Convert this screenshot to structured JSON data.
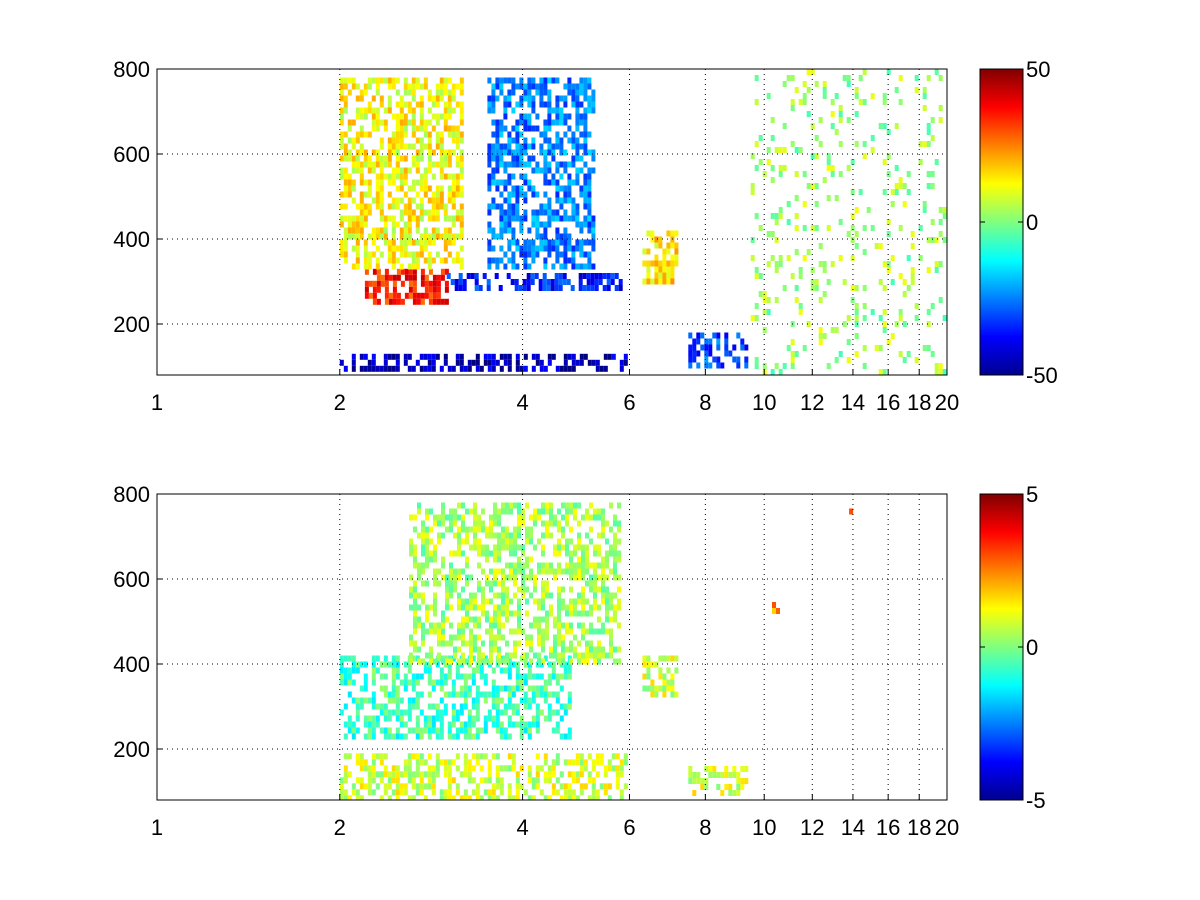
{
  "chart_data": [
    {
      "type": "heatmap",
      "title": "",
      "xlabel": "",
      "ylabel": "",
      "x_ticks": [
        1,
        2,
        4,
        6,
        8,
        10,
        12,
        14,
        16,
        18,
        20
      ],
      "y_ticks": [
        200,
        400,
        600,
        800
      ],
      "xlim": [
        1,
        20
      ],
      "ylim": [
        80,
        800
      ],
      "grid": true,
      "x_scale": "log",
      "colormap": "jet",
      "colorbar": {
        "ticks": [
          -50,
          0,
          50
        ],
        "range": [
          -50,
          50
        ]
      },
      "features": [
        {
          "x": [
            2.0,
            5.9
          ],
          "y": [
            95,
            130
          ],
          "value": -45,
          "note": "strong negative band"
        },
        {
          "x": [
            2.2,
            3.0
          ],
          "y": [
            250,
            330
          ],
          "value": 35,
          "note": "positive region"
        },
        {
          "x": [
            3.0,
            5.8
          ],
          "y": [
            280,
            320
          ],
          "value": -35
        },
        {
          "x": [
            3.5,
            5.2
          ],
          "y": [
            330,
            780
          ],
          "value": -25
        },
        {
          "x": [
            2.0,
            3.2
          ],
          "y": [
            330,
            780
          ],
          "value": 12
        },
        {
          "x": [
            6.3,
            7.2
          ],
          "y": [
            300,
            420
          ],
          "value": 15
        },
        {
          "x": [
            7.5,
            9.3
          ],
          "y": [
            100,
            180
          ],
          "value": -30
        },
        {
          "x": [
            9.5,
            20
          ],
          "y": [
            80,
            800
          ],
          "value": 3,
          "note": "sparse speckle"
        }
      ]
    },
    {
      "type": "heatmap",
      "title": "",
      "xlabel": "",
      "ylabel": "",
      "x_ticks": [
        1,
        2,
        4,
        6,
        8,
        10,
        12,
        14,
        16,
        18,
        20
      ],
      "y_ticks": [
        200,
        400,
        600,
        800
      ],
      "xlim": [
        1,
        20
      ],
      "ylim": [
        80,
        800
      ],
      "grid": true,
      "x_scale": "log",
      "colormap": "jet",
      "colorbar": {
        "ticks": [
          -5,
          0,
          5
        ],
        "range": [
          -5,
          5
        ]
      },
      "features": [
        {
          "x": [
            2.0,
            5.9
          ],
          "y": [
            90,
            190
          ],
          "value": 0.8
        },
        {
          "x": [
            2.0,
            4.8
          ],
          "y": [
            230,
            420
          ],
          "value": -0.6
        },
        {
          "x": [
            2.6,
            5.8
          ],
          "y": [
            400,
            780
          ],
          "value": 0.4
        },
        {
          "x": [
            6.3,
            7.2
          ],
          "y": [
            330,
            420
          ],
          "value": 0.8
        },
        {
          "x": [
            7.5,
            9.3
          ],
          "y": [
            95,
            160
          ],
          "value": 0.9
        },
        {
          "x": [
            10.3,
            10.5
          ],
          "y": [
            520,
            560
          ],
          "value": 2.5
        },
        {
          "x": [
            13.8,
            14.0
          ],
          "y": [
            760,
            780
          ],
          "value": 2.2
        }
      ]
    }
  ]
}
